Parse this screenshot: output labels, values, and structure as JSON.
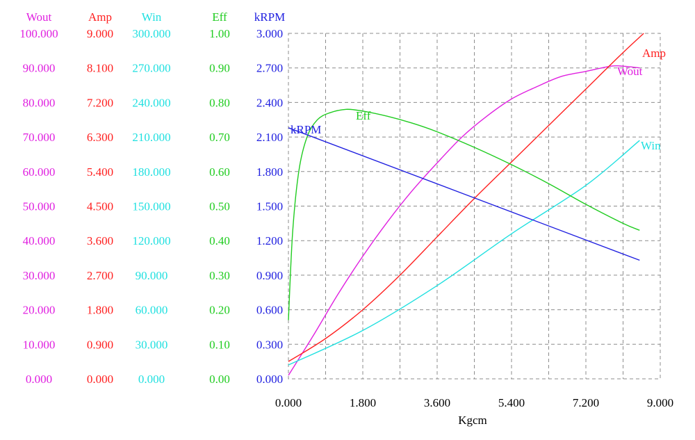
{
  "chart_data": {
    "type": "line",
    "xlabel": "Kgcm",
    "x_ticks": [
      "0.000",
      "1.800",
      "3.600",
      "5.400",
      "7.200",
      "9.000"
    ],
    "xlim": [
      0,
      9
    ],
    "axes": [
      {
        "name": "Wout",
        "color": "#e020e0",
        "ylim": [
          0,
          100
        ],
        "ticks": [
          "0.000",
          "10.000",
          "20.000",
          "30.000",
          "40.000",
          "50.000",
          "60.000",
          "70.000",
          "80.000",
          "90.000",
          "100.000"
        ]
      },
      {
        "name": "Amp",
        "color": "#ff2020",
        "ylim": [
          0,
          9
        ],
        "ticks": [
          "0.000",
          "0.900",
          "1.800",
          "2.700",
          "3.600",
          "4.500",
          "5.400",
          "6.300",
          "7.200",
          "8.100",
          "9.000"
        ]
      },
      {
        "name": "Win",
        "color": "#20e0e0",
        "ylim": [
          0,
          300
        ],
        "ticks": [
          "0.000",
          "30.000",
          "60.000",
          "90.000",
          "120.000",
          "150.000",
          "180.000",
          "210.000",
          "240.000",
          "270.000",
          "300.000"
        ]
      },
      {
        "name": "Eff",
        "color": "#20cc20",
        "ylim": [
          0,
          1
        ],
        "ticks": [
          "0.00",
          "0.10",
          "0.20",
          "0.30",
          "0.40",
          "0.50",
          "0.60",
          "0.70",
          "0.80",
          "0.90",
          "1.00"
        ]
      },
      {
        "name": "kRPM",
        "color": "#2020e0",
        "ylim": [
          0,
          3
        ],
        "ticks": [
          "0.000",
          "0.300",
          "0.600",
          "0.900",
          "1.200",
          "1.500",
          "1.800",
          "2.100",
          "2.400",
          "2.700",
          "3.000"
        ]
      }
    ],
    "series": [
      {
        "name": "Wout",
        "axis": 0,
        "color": "#e020e0",
        "x": [
          0.0,
          0.6,
          1.2,
          1.8,
          2.4,
          3.0,
          3.6,
          4.2,
          4.8,
          5.4,
          6.0,
          6.6,
          7.2,
          7.8,
          8.1,
          8.5
        ],
        "y": [
          1.0,
          12.5,
          24.5,
          35.5,
          45.5,
          54.5,
          62.5,
          70.0,
          76.0,
          81.0,
          84.5,
          87.5,
          89.0,
          90.5,
          90.5,
          90.0
        ]
      },
      {
        "name": "Amp",
        "axis": 1,
        "color": "#ff2020",
        "x": [
          0.0,
          0.9,
          1.8,
          2.7,
          3.6,
          4.5,
          5.4,
          6.3,
          7.2,
          8.1,
          8.6
        ],
        "y": [
          0.45,
          1.05,
          1.8,
          2.7,
          3.7,
          4.7,
          5.65,
          6.6,
          7.55,
          8.5,
          9.0
        ]
      },
      {
        "name": "Win",
        "axis": 2,
        "color": "#20e0e0",
        "x": [
          0.0,
          1.8,
          3.6,
          5.4,
          7.2,
          8.5
        ],
        "y": [
          12.0,
          42.0,
          81.0,
          126.0,
          168.0,
          207.0
        ]
      },
      {
        "name": "Eff",
        "axis": 3,
        "color": "#20cc20",
        "x": [
          0.0,
          0.1,
          0.25,
          0.45,
          0.7,
          1.0,
          1.4,
          1.8,
          2.4,
          3.0,
          3.6,
          4.5,
          5.4,
          6.3,
          7.2,
          8.1,
          8.5
        ],
        "y": [
          0.17,
          0.42,
          0.6,
          0.7,
          0.75,
          0.77,
          0.78,
          0.775,
          0.76,
          0.74,
          0.715,
          0.67,
          0.62,
          0.565,
          0.505,
          0.45,
          0.43
        ]
      },
      {
        "name": "kRPM",
        "axis": 4,
        "color": "#2020e0",
        "x": [
          0.0,
          8.5
        ],
        "y": [
          2.18,
          1.03
        ]
      }
    ]
  }
}
